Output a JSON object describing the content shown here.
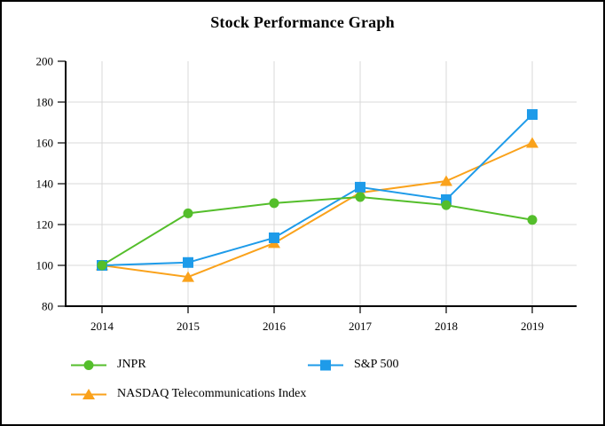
{
  "title": "Stock Performance Graph",
  "chart_data": {
    "type": "line",
    "x": [
      "2014",
      "2015",
      "2016",
      "2017",
      "2018",
      "2019"
    ],
    "series": [
      {
        "name": "JNPR",
        "marker": "circle-marker-icon",
        "marker_shape": "circle",
        "color": "#54BE2B",
        "values": [
          100,
          125.5,
          130.5,
          133.5,
          129.5,
          122.3
        ]
      },
      {
        "name": "S&P 500",
        "marker": "square-marker-icon",
        "marker_shape": "square",
        "color": "#1E9BE9",
        "values": [
          100,
          101.4,
          113.5,
          138.3,
          132.2,
          173.9
        ]
      },
      {
        "name": "NASDAQ Telecommunications Index",
        "marker": "triangle-marker-icon",
        "marker_shape": "triangle",
        "color": "#FAA21B",
        "values": [
          100,
          94.3,
          110.9,
          135.6,
          141.3,
          160.0
        ]
      }
    ],
    "ylim": [
      80,
      200
    ],
    "yticks": [
      80,
      100,
      120,
      140,
      160,
      180,
      200
    ],
    "grid": true,
    "gridline_color": "#D8D8D8",
    "axis_color": "#000000",
    "legend_position": "bottom-left"
  }
}
